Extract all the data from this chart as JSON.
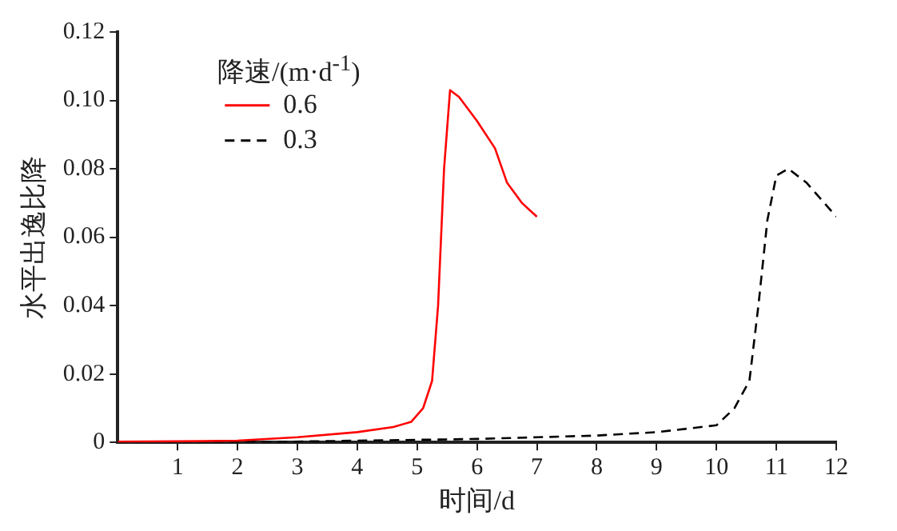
{
  "chart_data": {
    "type": "line",
    "xlabel": "时间/d",
    "ylabel": "水平出逸比降",
    "legend_title": "降速/(m·d$^{-1}$)",
    "legend": "top left",
    "grid": false,
    "marker": "none",
    "xlim": [
      0,
      12
    ],
    "xticks": [
      1,
      2,
      3,
      4,
      5,
      6,
      7,
      8,
      9,
      10,
      11,
      12
    ],
    "ylim": [
      0,
      0.12
    ],
    "yticks": [
      0,
      {
        "value": 0.02,
        "label": "0.02"
      },
      {
        "value": 0.04,
        "label": "0.04"
      },
      {
        "value": 0.06,
        "label": "0.06"
      },
      {
        "value": 0.08,
        "label": "0.08"
      },
      {
        "value": 0.1,
        "label": "0.10"
      },
      {
        "value": 0.12,
        "label": "0.12"
      }
    ],
    "series": [
      {
        "name": "0.6",
        "color": "#ff0000",
        "line_style": "solid",
        "x": [
          0,
          1,
          2,
          3,
          4,
          4.6,
          4.9,
          5.1,
          5.25,
          5.35,
          5.45,
          5.55,
          5.7,
          6.0,
          6.3,
          6.5,
          6.75,
          7.0
        ],
        "values": [
          0.0002,
          0.0003,
          0.0005,
          0.0015,
          0.003,
          0.0045,
          0.006,
          0.01,
          0.018,
          0.04,
          0.08,
          0.103,
          0.101,
          0.094,
          0.086,
          0.076,
          0.07,
          0.066
        ]
      },
      {
        "name": "0.3",
        "color": "#000000",
        "line_style": "dashed",
        "x": [
          0,
          2,
          4,
          6,
          7,
          8,
          9,
          10,
          10.3,
          10.55,
          10.7,
          10.85,
          11.0,
          11.2,
          11.5,
          12
        ],
        "values": [
          0,
          0,
          0.0005,
          0.001,
          0.0015,
          0.002,
          0.003,
          0.005,
          0.01,
          0.018,
          0.04,
          0.065,
          0.078,
          0.08,
          0.076,
          0.066
        ]
      }
    ]
  }
}
